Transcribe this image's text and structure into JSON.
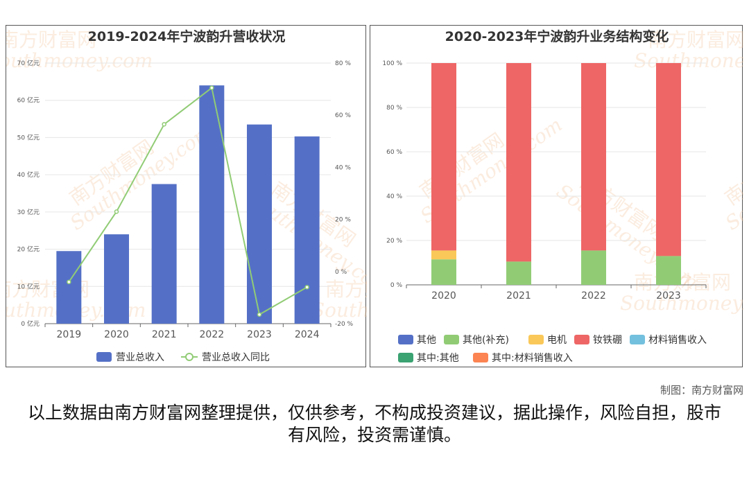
{
  "charts": [
    {
      "title": "2019-2024年宁波韵升营收状况",
      "type": "bar+line",
      "categories": [
        "2019",
        "2020",
        "2021",
        "2022",
        "2023",
        "2024"
      ],
      "y_left": {
        "ticks": [
          "0 亿元",
          "10 亿元",
          "20 亿元",
          "30 亿元",
          "40 亿元",
          "50 亿元",
          "60 亿元",
          "70 亿元"
        ],
        "range": [
          0,
          70
        ]
      },
      "y_right": {
        "ticks": [
          "-20 %",
          "0 %",
          "20 %",
          "40 %",
          "60 %",
          "80 %"
        ],
        "range": [
          -20,
          80
        ]
      },
      "series": [
        {
          "name": "营业总收入",
          "type": "bar",
          "color": "#5470c6",
          "values": [
            19.5,
            24.0,
            37.5,
            64.0,
            53.5,
            50.3
          ]
        },
        {
          "name": "营业总收入同比",
          "type": "line",
          "color": "#91cc75",
          "values": [
            -4.0,
            23.0,
            56.5,
            70.5,
            -16.5,
            -6.0
          ]
        }
      ]
    },
    {
      "title": "2020-2023年宁波韵升业务结构变化",
      "type": "stacked-bar",
      "categories": [
        "2020",
        "2021",
        "2022",
        "2023"
      ],
      "y": {
        "ticks": [
          "0 %",
          "20 %",
          "40 %",
          "60 %",
          "80 %",
          "100 %"
        ],
        "range": [
          0,
          100
        ]
      },
      "series": [
        {
          "name": "其他",
          "color": "#5470c6",
          "values": [
            0,
            0,
            0,
            0
          ]
        },
        {
          "name": "其他(补充)",
          "color": "#91cc75",
          "values": [
            11.5,
            10.5,
            15.5,
            13.0
          ]
        },
        {
          "name": "电机",
          "color": "#fac858",
          "values": [
            4.0,
            0,
            0,
            0
          ]
        },
        {
          "name": "钕铁硼",
          "color": "#ee6666",
          "values": [
            84.5,
            89.5,
            84.5,
            87.0
          ]
        },
        {
          "name": "材料销售收入",
          "color": "#73c0de",
          "values": [
            0,
            0,
            0,
            0
          ]
        },
        {
          "name": "其中:其他",
          "color": "#3ba272",
          "values": [
            0,
            0,
            0,
            0
          ]
        },
        {
          "name": "其中:材料销售收入",
          "color": "#fc8452",
          "values": [
            0,
            0,
            0,
            0
          ]
        }
      ]
    }
  ],
  "watermark": {
    "cn": "南方财富网",
    "en": "Southmoney.com"
  },
  "credit": "制图：南方财富网",
  "disclaimer": "以上数据由南方财富网整理提供，仅供参考，不构成投资建议，据此操作，风险自担，股市有风险，投资需谨慎。"
}
